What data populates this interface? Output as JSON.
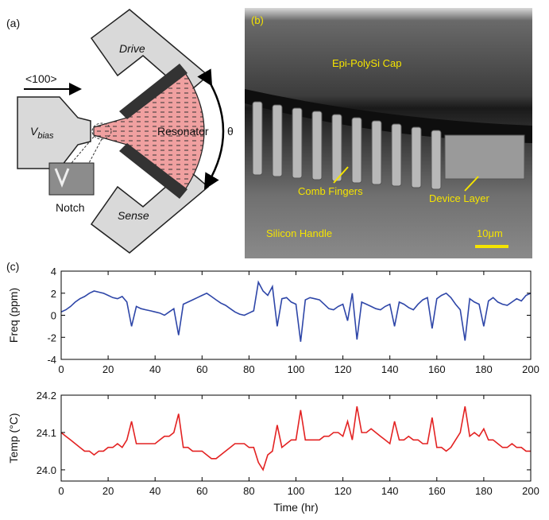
{
  "panels": {
    "a": {
      "label": "(a)",
      "drive": "Drive",
      "direction": "<100>",
      "vbias_symbol": "V",
      "vbias_subscript": "bias",
      "resonator": "Resonator",
      "angle": "θ",
      "notch": "Notch",
      "sense": "Sense"
    },
    "b": {
      "label": "(b)",
      "cap": "Epi-PolySi Cap",
      "comb": "Comb Fingers",
      "device": "Device Layer",
      "handle": "Silicon Handle",
      "scale": "10μm"
    },
    "c": {
      "label": "(c)"
    }
  },
  "chart_data": [
    {
      "type": "line",
      "ylabel": "Freq (ppm)",
      "x": [
        0,
        2,
        4,
        6,
        8,
        10,
        12,
        14,
        16,
        18,
        20,
        22,
        24,
        26,
        28,
        30,
        32,
        34,
        36,
        38,
        40,
        42,
        44,
        46,
        48,
        50,
        52,
        54,
        56,
        58,
        60,
        62,
        64,
        66,
        68,
        70,
        72,
        74,
        76,
        78,
        80,
        82,
        84,
        86,
        88,
        90,
        92,
        94,
        96,
        98,
        100,
        102,
        104,
        106,
        108,
        110,
        112,
        114,
        116,
        118,
        120,
        122,
        124,
        126,
        128,
        130,
        132,
        134,
        136,
        138,
        140,
        142,
        144,
        146,
        148,
        150,
        152,
        154,
        156,
        158,
        160,
        162,
        164,
        166,
        168,
        170,
        172,
        174,
        176,
        178,
        180,
        182,
        184,
        186,
        188,
        190,
        192,
        194,
        196,
        198,
        200
      ],
      "series": [
        {
          "color": "#2e46a8",
          "values": [
            0.3,
            0.5,
            0.8,
            1.2,
            1.5,
            1.7,
            2.0,
            2.2,
            2.1,
            2.0,
            1.8,
            1.6,
            1.5,
            1.7,
            1.2,
            -1.0,
            0.8,
            0.6,
            0.5,
            0.4,
            0.3,
            0.2,
            0.0,
            0.3,
            0.6,
            -1.8,
            1.0,
            1.2,
            1.4,
            1.6,
            1.8,
            2.0,
            1.7,
            1.4,
            1.1,
            0.9,
            0.6,
            0.3,
            0.1,
            0.0,
            0.2,
            0.4,
            3.0,
            2.2,
            1.8,
            2.6,
            -1.0,
            1.5,
            1.6,
            1.2,
            1.0,
            -2.4,
            1.4,
            1.6,
            1.5,
            1.4,
            1.0,
            0.6,
            0.5,
            0.8,
            1.0,
            -0.5,
            2.0,
            -2.2,
            1.2,
            1.0,
            0.8,
            0.6,
            0.5,
            0.8,
            1.0,
            -1.0,
            1.2,
            1.0,
            0.7,
            0.5,
            1.0,
            1.4,
            1.6,
            -1.2,
            1.5,
            1.8,
            2.0,
            1.6,
            1.0,
            0.5,
            -2.3,
            1.5,
            1.2,
            1.0,
            -1.0,
            1.3,
            1.6,
            1.2,
            1.0,
            0.9,
            1.2,
            1.5,
            1.3,
            1.8,
            2.0
          ]
        }
      ],
      "xlim": [
        0,
        200
      ],
      "xticks": [
        0,
        20,
        40,
        60,
        80,
        100,
        120,
        140,
        160,
        180,
        200
      ],
      "ylim": [
        -4,
        4
      ],
      "yticks": [
        -4,
        -2,
        0,
        2,
        4
      ]
    },
    {
      "type": "line",
      "ylabel": "Temp (°C)",
      "xlabel": "Time (hr)",
      "x": [
        0,
        2,
        4,
        6,
        8,
        10,
        12,
        14,
        16,
        18,
        20,
        22,
        24,
        26,
        28,
        30,
        32,
        34,
        36,
        38,
        40,
        42,
        44,
        46,
        48,
        50,
        52,
        54,
        56,
        58,
        60,
        62,
        64,
        66,
        68,
        70,
        72,
        74,
        76,
        78,
        80,
        82,
        84,
        86,
        88,
        90,
        92,
        94,
        96,
        98,
        100,
        102,
        104,
        106,
        108,
        110,
        112,
        114,
        116,
        118,
        120,
        122,
        124,
        126,
        128,
        130,
        132,
        134,
        136,
        138,
        140,
        142,
        144,
        146,
        148,
        150,
        152,
        154,
        156,
        158,
        160,
        162,
        164,
        166,
        168,
        170,
        172,
        174,
        176,
        178,
        180,
        182,
        184,
        186,
        188,
        190,
        192,
        194,
        196,
        198,
        200
      ],
      "series": [
        {
          "color": "#e32222",
          "values": [
            24.1,
            24.09,
            24.08,
            24.07,
            24.06,
            24.05,
            24.05,
            24.04,
            24.05,
            24.05,
            24.06,
            24.06,
            24.07,
            24.06,
            24.08,
            24.13,
            24.07,
            24.07,
            24.07,
            24.07,
            24.07,
            24.08,
            24.09,
            24.09,
            24.1,
            24.15,
            24.06,
            24.06,
            24.05,
            24.05,
            24.05,
            24.04,
            24.03,
            24.03,
            24.04,
            24.05,
            24.06,
            24.07,
            24.07,
            24.07,
            24.06,
            24.06,
            24.02,
            24.0,
            24.04,
            24.05,
            24.12,
            24.06,
            24.07,
            24.08,
            24.08,
            24.16,
            24.08,
            24.08,
            24.08,
            24.08,
            24.09,
            24.09,
            24.1,
            24.1,
            24.09,
            24.13,
            24.08,
            24.17,
            24.1,
            24.1,
            24.11,
            24.1,
            24.09,
            24.08,
            24.07,
            24.13,
            24.08,
            24.08,
            24.09,
            24.08,
            24.08,
            24.07,
            24.07,
            24.14,
            24.06,
            24.06,
            24.05,
            24.06,
            24.08,
            24.1,
            24.17,
            24.09,
            24.1,
            24.09,
            24.11,
            24.08,
            24.08,
            24.07,
            24.06,
            24.06,
            24.07,
            24.06,
            24.06,
            24.05,
            24.05
          ]
        }
      ],
      "xlim": [
        0,
        200
      ],
      "xticks": [
        0,
        20,
        40,
        60,
        80,
        100,
        120,
        140,
        160,
        180,
        200
      ],
      "ylim": [
        23.97,
        24.2
      ],
      "yticks": [
        {
          "value": 24,
          "label": "24.0"
        },
        24.1,
        24.2
      ]
    }
  ]
}
